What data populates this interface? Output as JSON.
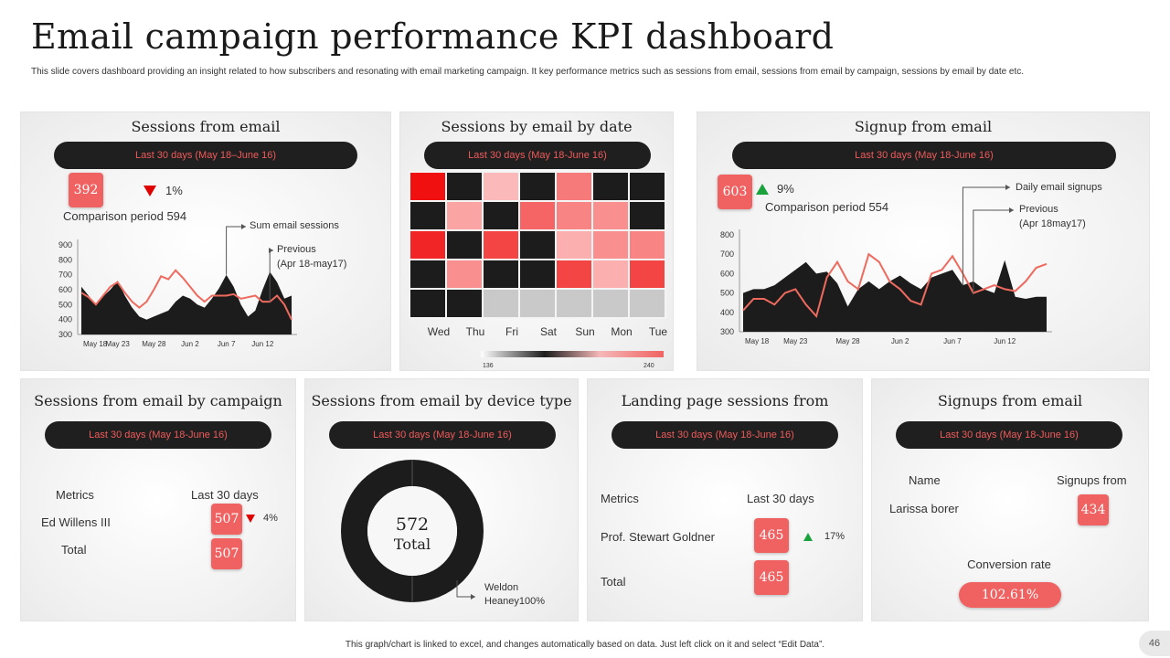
{
  "title": "Email campaign performance KPI dashboard",
  "subtitle": "This slide covers dashboard providing an insight related to how subscribers and resonating with email marketing campaign. It key performance metrics such as sessions from email, sessions from email by campaign, sessions by email by date etc.",
  "footer": "This graph/chart is linked to excel, and changes automatically based on data. Just left click on it and select “Edit Data”.",
  "page_number": "46",
  "colors": {
    "accent": "#f06262",
    "dark": "#1f1f1f",
    "up": "#1aa33c",
    "down": "#e00000"
  },
  "sessions": {
    "title": "Sessions from email",
    "range": "Last 30 days (May 18–June 16)",
    "value": "392",
    "change": "1%",
    "comparison": "Comparison period 594",
    "callout_main": "Sum email sessions",
    "callout_prev": "Previous",
    "callout_prev_range": "(Apr 18-may17)"
  },
  "by_date": {
    "title": "Sessions by email by date",
    "range": "Last 30 days (May 18-June 16)",
    "legend_min": "136",
    "legend_max": "240"
  },
  "signup": {
    "title": "Signup from email",
    "range": "Last 30 days (May 18-June 16)",
    "value": "603",
    "change": "9%",
    "comparison": "Comparison period 554",
    "callout_main": "Daily email signups",
    "callout_prev": "Previous",
    "callout_prev_range": "(Apr 18may17)"
  },
  "campaign": {
    "title": "Sessions from email by campaign",
    "range": "Last 30 days (May 18-June 16)",
    "col_metrics": "Metrics",
    "col_last": "Last 30 days",
    "row1_name": "Ed Willens III",
    "row1_value": "507",
    "row1_change": "4%",
    "row2_name": "Total",
    "row2_value": "507"
  },
  "device": {
    "title": "Sessions from email by device type",
    "range": "Last 30 days (May 18-June 16)",
    "total_value": "572",
    "total_label": "Total",
    "callout_line1": "Weldon",
    "callout_line2": "Heaney100%"
  },
  "landing": {
    "title": "Landing page sessions from",
    "range": "Last 30 days (May 18-June 16)",
    "col_metrics": "Metrics",
    "col_last": "Last 30 days",
    "row1_name": "Prof. Stewart Goldner",
    "row1_value": "465",
    "row1_change": "17%",
    "row2_name": "Total",
    "row2_value": "465"
  },
  "signups2": {
    "title": "Signups from email",
    "range": "Last 30 days (May 18-June 16)",
    "col_name": "Name",
    "col_signups": "Signups from",
    "row1_name": "Larissa borer",
    "row1_value": "434",
    "conversion_label": "Conversion rate",
    "conversion_value": "102.61%"
  },
  "chart_data": [
    {
      "id": "sessions-chart",
      "type": "area",
      "title": "Sessions from email",
      "x": [
        "May 18",
        "May 19",
        "May 20",
        "May 21",
        "May 22",
        "May 23",
        "May 24",
        "May 25",
        "May 26",
        "May 27",
        "May 28",
        "May 29",
        "May 30",
        "May 31",
        "Jun 1",
        "Jun 2",
        "Jun 3",
        "Jun 4",
        "Jun 5",
        "Jun 6",
        "Jun 7",
        "Jun 8",
        "Jun 9",
        "Jun 10",
        "Jun 11",
        "Jun 12",
        "Jun 13",
        "Jun 14",
        "Jun 15",
        "Jun 16"
      ],
      "x_ticks": [
        "May 18",
        "May 23",
        "May 28",
        "Jun 2",
        "Jun 7",
        "Jun 12"
      ],
      "series": [
        {
          "name": "Sum email sessions",
          "style": "area",
          "values": [
            620,
            560,
            500,
            555,
            600,
            660,
            560,
            480,
            420,
            400,
            420,
            440,
            460,
            520,
            560,
            540,
            500,
            480,
            540,
            610,
            700,
            620,
            500,
            420,
            460,
            600,
            720,
            650,
            540,
            560
          ]
        },
        {
          "name": "Previous (Apr 18-may17)",
          "style": "line",
          "values": [
            580,
            550,
            500,
            560,
            620,
            650,
            580,
            520,
            480,
            520,
            600,
            690,
            670,
            730,
            680,
            620,
            560,
            520,
            560,
            560,
            560,
            570,
            540,
            550,
            560,
            520,
            520,
            560,
            500,
            400
          ]
        }
      ],
      "ylim": [
        300,
        900
      ],
      "y_ticks": [
        300,
        400,
        500,
        600,
        700,
        800,
        900
      ]
    },
    {
      "id": "date-heatmap",
      "type": "heatmap",
      "title": "Sessions by email by date",
      "columns": [
        "Wed",
        "Thu",
        "Fri",
        "Sat",
        "Sun",
        "Mon",
        "Tue"
      ],
      "rows": 5,
      "values": [
        [
          240,
          136,
          160,
          136,
          190,
          136,
          136
        ],
        [
          136,
          170,
          136,
          200,
          185,
          180,
          136
        ],
        [
          230,
          136,
          215,
          136,
          165,
          180,
          185
        ],
        [
          136,
          180,
          136,
          136,
          215,
          165,
          215
        ],
        [
          136,
          136,
          null,
          null,
          null,
          null,
          null
        ]
      ],
      "range": [
        136,
        240
      ]
    },
    {
      "id": "signup-chart",
      "type": "area",
      "title": "Signup from email",
      "x": [
        "May 18",
        "May 19",
        "May 20",
        "May 21",
        "May 22",
        "May 23",
        "May 24",
        "May 25",
        "May 26",
        "May 27",
        "May 28",
        "May 29",
        "May 30",
        "May 31",
        "Jun 1",
        "Jun 2",
        "Jun 3",
        "Jun 4",
        "Jun 5",
        "Jun 6",
        "Jun 7",
        "Jun 8",
        "Jun 9",
        "Jun 10",
        "Jun 11",
        "Jun 12",
        "Jun 13",
        "Jun 14",
        "Jun 15",
        "Jun 16"
      ],
      "x_ticks": [
        "May 18",
        "May 23",
        "May 28",
        "Jun 2",
        "Jun 7",
        "Jun 12"
      ],
      "series": [
        {
          "name": "Daily email signups",
          "style": "area",
          "values": [
            500,
            520,
            520,
            540,
            580,
            620,
            660,
            600,
            610,
            550,
            430,
            520,
            560,
            520,
            560,
            590,
            550,
            520,
            580,
            600,
            620,
            540,
            560,
            520,
            500,
            670,
            480,
            470,
            480,
            480
          ]
        },
        {
          "name": "Previous (Apr 18may17)",
          "style": "line",
          "values": [
            410,
            470,
            470,
            440,
            500,
            520,
            440,
            380,
            580,
            660,
            560,
            520,
            700,
            660,
            560,
            520,
            460,
            440,
            600,
            620,
            690,
            600,
            500,
            520,
            540,
            520,
            510,
            560,
            630,
            650
          ]
        }
      ],
      "ylim": [
        300,
        800
      ],
      "y_ticks": [
        300,
        400,
        500,
        600,
        700,
        800
      ]
    },
    {
      "id": "device-donut",
      "type": "pie",
      "title": "Sessions from email by device type",
      "slices": [
        {
          "label": "Weldon Heaney",
          "value": 100
        }
      ],
      "total": 572
    }
  ]
}
